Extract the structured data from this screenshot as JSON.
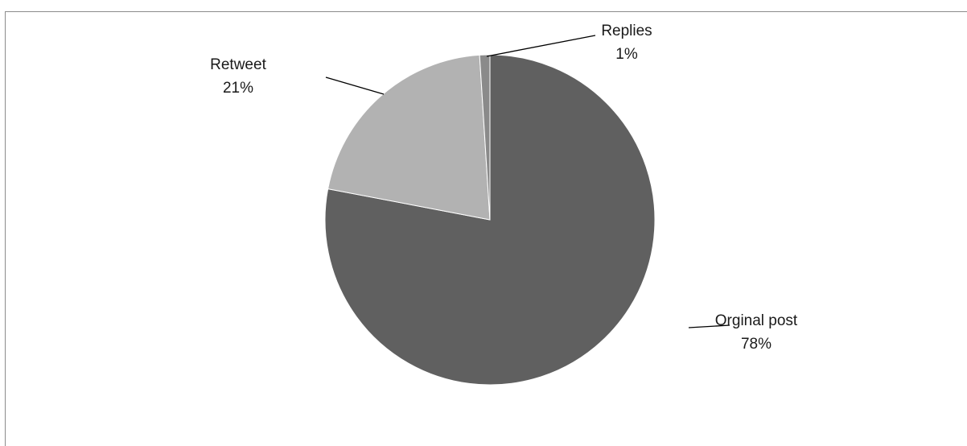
{
  "chart_data": {
    "type": "pie",
    "title": "",
    "categories": [
      "Orginal post",
      "Retweet",
      "Replies"
    ],
    "values": [
      78,
      21,
      1
    ],
    "value_labels": [
      "78%",
      "21%",
      "1%"
    ],
    "colors": [
      "#606060",
      "#b2b2b2",
      "#8a8a8a"
    ],
    "start_angle_deg": 0,
    "direction": "clockwise",
    "legend": "none",
    "data_labels": "outside-with-leader-lines"
  }
}
